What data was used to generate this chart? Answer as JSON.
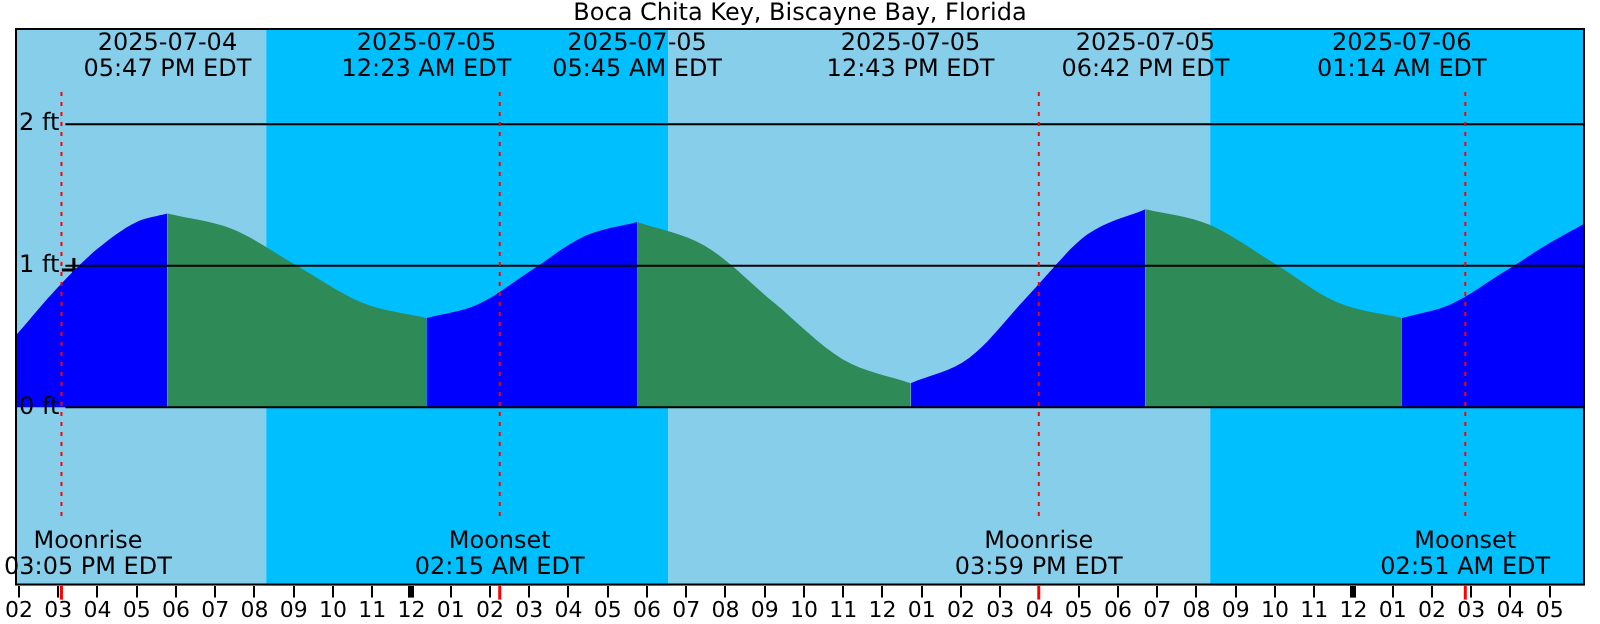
{
  "chart_data": {
    "type": "area",
    "title": "Boca Chita Key, Biscayne Bay, Florida",
    "xlim": [
      "2025-07-04T13:54",
      "2025-07-06T05:54"
    ],
    "xticks": [
      {
        "value": "2025-07-04T14:00",
        "label": "02"
      },
      {
        "value": "2025-07-04T15:00",
        "label": "03"
      },
      {
        "value": "2025-07-04T16:00",
        "label": "04"
      },
      {
        "value": "2025-07-04T17:00",
        "label": "05"
      },
      {
        "value": "2025-07-04T18:00",
        "label": "06"
      },
      {
        "value": "2025-07-04T19:00",
        "label": "07"
      },
      {
        "value": "2025-07-04T20:00",
        "label": "08"
      },
      {
        "value": "2025-07-04T21:00",
        "label": "09"
      },
      {
        "value": "2025-07-04T22:00",
        "label": "10"
      },
      {
        "value": "2025-07-04T23:00",
        "label": "11"
      },
      {
        "value": "2025-07-05T00:00",
        "label": "12"
      },
      {
        "value": "2025-07-05T01:00",
        "label": "01"
      },
      {
        "value": "2025-07-05T02:00",
        "label": "02"
      },
      {
        "value": "2025-07-05T03:00",
        "label": "03"
      },
      {
        "value": "2025-07-05T04:00",
        "label": "04"
      },
      {
        "value": "2025-07-05T05:00",
        "label": "05"
      },
      {
        "value": "2025-07-05T06:00",
        "label": "06"
      },
      {
        "value": "2025-07-05T07:00",
        "label": "07"
      },
      {
        "value": "2025-07-05T08:00",
        "label": "08"
      },
      {
        "value": "2025-07-05T09:00",
        "label": "09"
      },
      {
        "value": "2025-07-05T10:00",
        "label": "10"
      },
      {
        "value": "2025-07-05T11:00",
        "label": "11"
      },
      {
        "value": "2025-07-05T12:00",
        "label": "12"
      },
      {
        "value": "2025-07-05T13:00",
        "label": "01"
      },
      {
        "value": "2025-07-05T14:00",
        "label": "02"
      },
      {
        "value": "2025-07-05T15:00",
        "label": "03"
      },
      {
        "value": "2025-07-05T16:00",
        "label": "04"
      },
      {
        "value": "2025-07-05T17:00",
        "label": "05"
      },
      {
        "value": "2025-07-05T18:00",
        "label": "06"
      },
      {
        "value": "2025-07-05T19:00",
        "label": "07"
      },
      {
        "value": "2025-07-05T20:00",
        "label": "08"
      },
      {
        "value": "2025-07-05T21:00",
        "label": "09"
      },
      {
        "value": "2025-07-05T22:00",
        "label": "10"
      },
      {
        "value": "2025-07-05T23:00",
        "label": "11"
      },
      {
        "value": "2025-07-06T00:00",
        "label": "12"
      },
      {
        "value": "2025-07-06T01:00",
        "label": "01"
      },
      {
        "value": "2025-07-06T02:00",
        "label": "02"
      },
      {
        "value": "2025-07-06T03:00",
        "label": "03"
      },
      {
        "value": "2025-07-06T04:00",
        "label": "04"
      },
      {
        "value": "2025-07-06T05:00",
        "label": "05"
      }
    ],
    "ylim": [
      -1.26,
      2.68
    ],
    "yticks": [
      {
        "value": 0,
        "label": "0 ft"
      },
      {
        "value": 1,
        "label": "1 ft"
      },
      {
        "value": 2,
        "label": "2 ft"
      }
    ],
    "grid": "y",
    "legend": false,
    "bands": [
      {
        "axis": "x",
        "from": "2025-07-04T13:54",
        "to": "2025-07-04T20:18",
        "color": "#87ceeb"
      },
      {
        "axis": "x",
        "from": "2025-07-04T20:18",
        "to": "2025-07-05T06:33",
        "color": "#00bfff"
      },
      {
        "axis": "x",
        "from": "2025-07-05T06:33",
        "to": "2025-07-05T20:21",
        "color": "#87ceeb"
      },
      {
        "axis": "x",
        "from": "2025-07-05T20:21",
        "to": "2025-07-06T05:54",
        "color": "#00bfff"
      }
    ],
    "ref_lines": [
      {
        "axis": "x",
        "value": "2025-07-04T15:05",
        "label": "Moonrise\n03:05 PM EDT",
        "color": "#ff0000"
      },
      {
        "axis": "x",
        "value": "2025-07-05T02:15",
        "label": "Moonset\n02:15 AM EDT",
        "color": "#ff0000"
      },
      {
        "axis": "x",
        "value": "2025-07-05T15:59",
        "label": "Moonrise\n03:59 PM EDT",
        "color": "#ff0000"
      },
      {
        "axis": "x",
        "value": "2025-07-06T02:51",
        "label": "Moonset\n02:51 AM EDT",
        "color": "#ff0000"
      }
    ],
    "series": [
      {
        "color": "#0000ff",
        "x": [
          "2025-07-04T13:54",
          "2025-07-04T15:00",
          "2025-07-04T16:00",
          "2025-07-04T17:00",
          "2025-07-04T17:47"
        ],
        "values": [
          0.5,
          0.85,
          1.12,
          1.31,
          1.37
        ]
      },
      {
        "color": "#2e8b57",
        "x": [
          "2025-07-04T17:47",
          "2025-07-04T19:26",
          "2025-07-04T21:05",
          "2025-07-04T22:44",
          "2025-07-05T00:23"
        ],
        "values": [
          1.37,
          1.26,
          1.0,
          0.74,
          0.63
        ]
      },
      {
        "color": "#0000ff",
        "x": [
          "2025-07-05T00:23",
          "2025-07-05T01:43",
          "2025-07-05T03:04",
          "2025-07-05T04:25",
          "2025-07-05T05:45"
        ],
        "values": [
          0.63,
          0.73,
          0.97,
          1.21,
          1.31
        ]
      },
      {
        "color": "#2e8b57",
        "x": [
          "2025-07-05T05:45",
          "2025-07-05T07:29",
          "2025-07-05T09:14",
          "2025-07-05T10:59",
          "2025-07-05T12:43"
        ],
        "values": [
          1.31,
          1.14,
          0.74,
          0.34,
          0.17
        ]
      },
      {
        "color": "#0000ff",
        "x": [
          "2025-07-05T12:43",
          "2025-07-05T14:13",
          "2025-07-05T15:43",
          "2025-07-05T17:13",
          "2025-07-05T18:42"
        ],
        "values": [
          0.17,
          0.35,
          0.79,
          1.22,
          1.4
        ]
      },
      {
        "color": "#2e8b57",
        "x": [
          "2025-07-05T18:42",
          "2025-07-05T20:20",
          "2025-07-05T21:58",
          "2025-07-05T23:36",
          "2025-07-06T01:14"
        ],
        "values": [
          1.4,
          1.29,
          1.02,
          0.74,
          0.63
        ]
      },
      {
        "color": "#0000ff",
        "x": [
          "2025-07-06T01:14",
          "2025-07-06T02:30",
          "2025-07-06T03:48",
          "2025-07-06T05:00",
          "2025-07-06T05:54"
        ],
        "values": [
          0.63,
          0.73,
          0.95,
          1.16,
          1.3
        ]
      },
      {
        "type": "scatter",
        "marker": "cross",
        "color": "#000000",
        "x": [
          "2025-07-04T15:24"
        ],
        "values": [
          0.97
        ]
      }
    ],
    "annotations": [
      "2025-07-04\n05:47 PM EDT",
      "2025-07-05\n12:23 AM EDT",
      "2025-07-05\n05:45 AM EDT",
      "2025-07-05\n12:43 PM EDT",
      "2025-07-05\n06:42 PM EDT",
      "2025-07-06\n01:14 AM EDT"
    ]
  }
}
